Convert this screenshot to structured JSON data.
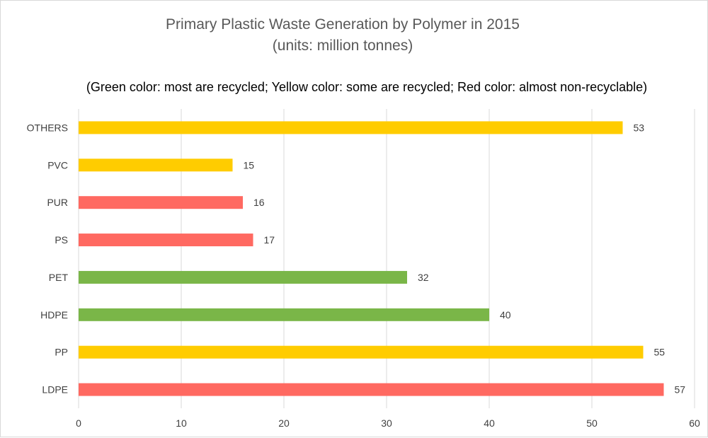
{
  "chart_data": {
    "type": "bar",
    "orientation": "horizontal",
    "title": "Primary Plastic Waste Generation by Polymer in 2015",
    "subtitle": "(units: million tonnes)",
    "note": "(Green color: most are recycled; Yellow color: some are recycled; Red color: almost non-recyclable)",
    "xlabel": "",
    "ylabel": "",
    "xlim": [
      0,
      60
    ],
    "x_ticks": [
      "0",
      "10",
      "20",
      "30",
      "40",
      "50",
      "60"
    ],
    "grid": "vertical",
    "legend": "none",
    "categories": [
      "LDPE",
      "PP",
      "HDPE",
      "PET",
      "PS",
      "PUR",
      "PVC",
      "OTHERS"
    ],
    "values": [
      57,
      55,
      40,
      32,
      17,
      16,
      15,
      53
    ],
    "data_labels": [
      "57",
      "55",
      "40",
      "32",
      "17",
      "16",
      "15",
      "53"
    ],
    "bar_colors": [
      "#ff6961",
      "#ffcc00",
      "#7ab648",
      "#7ab648",
      "#ff6961",
      "#ff6961",
      "#ffcc00",
      "#ffcc00"
    ]
  }
}
